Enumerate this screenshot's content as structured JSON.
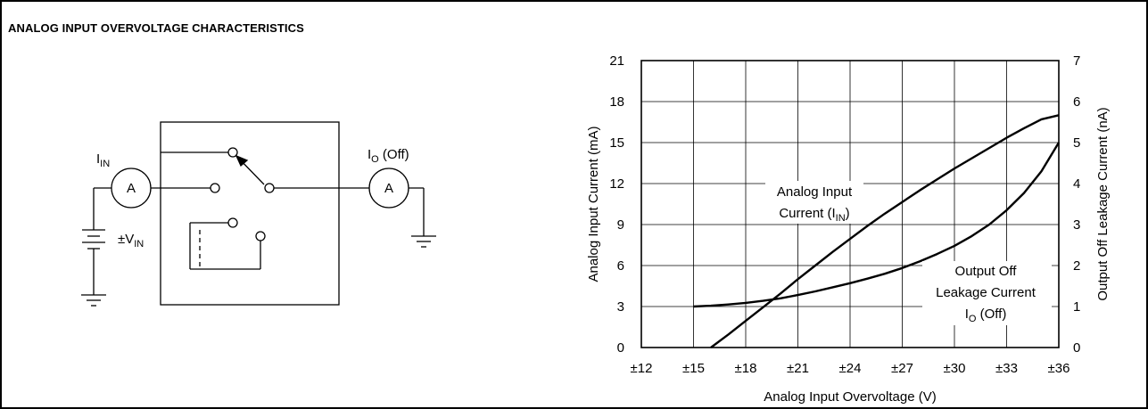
{
  "figure": {
    "title": "ANALOG INPUT OVERVOLTAGE CHARACTERISTICS"
  },
  "circuit": {
    "iin_label": "I",
    "iin_sub": "IN",
    "io_label": "I",
    "io_sub": "O",
    "io_suffix": " (Off)",
    "ammeter_left": "A",
    "ammeter_right": "A",
    "vin_label": "±V",
    "vin_sub": "IN"
  },
  "chart_data": {
    "type": "line",
    "title": "",
    "xlabel": "Analog Input Overvoltage (V)",
    "ylabel_left": "Analog Input Current (mA)",
    "ylabel_right": "Output Off Leakage Current (nA)",
    "x_ticks": [
      "±12",
      "±15",
      "±18",
      "±21",
      "±24",
      "±27",
      "±30",
      "±33",
      "±36"
    ],
    "y_left_ticks": [
      "0",
      "3",
      "6",
      "9",
      "12",
      "15",
      "18",
      "21"
    ],
    "y_right_ticks": [
      "0",
      "1",
      "2",
      "3",
      "4",
      "5",
      "6",
      "7"
    ],
    "xlim": [
      12,
      36
    ],
    "ylim_left": [
      0,
      21
    ],
    "ylim_right": [
      0,
      7
    ],
    "grid": true,
    "series": [
      {
        "name_lines": [
          "Analog Input",
          "Current (I"
        ],
        "name_sub": "IN",
        "name_tail": ")",
        "axis": "left",
        "x": [
          16,
          17,
          18,
          19,
          20,
          21,
          22,
          23,
          24,
          25,
          26,
          27,
          28,
          29,
          30,
          31,
          32,
          33,
          34,
          35,
          36
        ],
        "y": [
          0,
          0.95,
          1.95,
          2.95,
          3.95,
          5.0,
          6.0,
          7.0,
          7.95,
          8.9,
          9.8,
          10.65,
          11.5,
          12.3,
          13.1,
          13.85,
          14.6,
          15.35,
          16.05,
          16.7,
          17.0
        ]
      },
      {
        "name_lines": [
          "Output Off",
          "Leakage Current"
        ],
        "name_third": "I",
        "name_sub": "O",
        "name_tail": " (Off)",
        "axis": "right",
        "x": [
          15,
          16,
          17,
          18,
          19,
          20,
          21,
          22,
          23,
          24,
          25,
          26,
          27,
          28,
          29,
          30,
          31,
          32,
          33,
          34,
          35,
          36
        ],
        "y": [
          1.0,
          1.02,
          1.05,
          1.09,
          1.14,
          1.2,
          1.28,
          1.37,
          1.47,
          1.57,
          1.68,
          1.8,
          1.94,
          2.1,
          2.28,
          2.48,
          2.72,
          3.0,
          3.35,
          3.77,
          4.3,
          5.0
        ]
      }
    ]
  }
}
